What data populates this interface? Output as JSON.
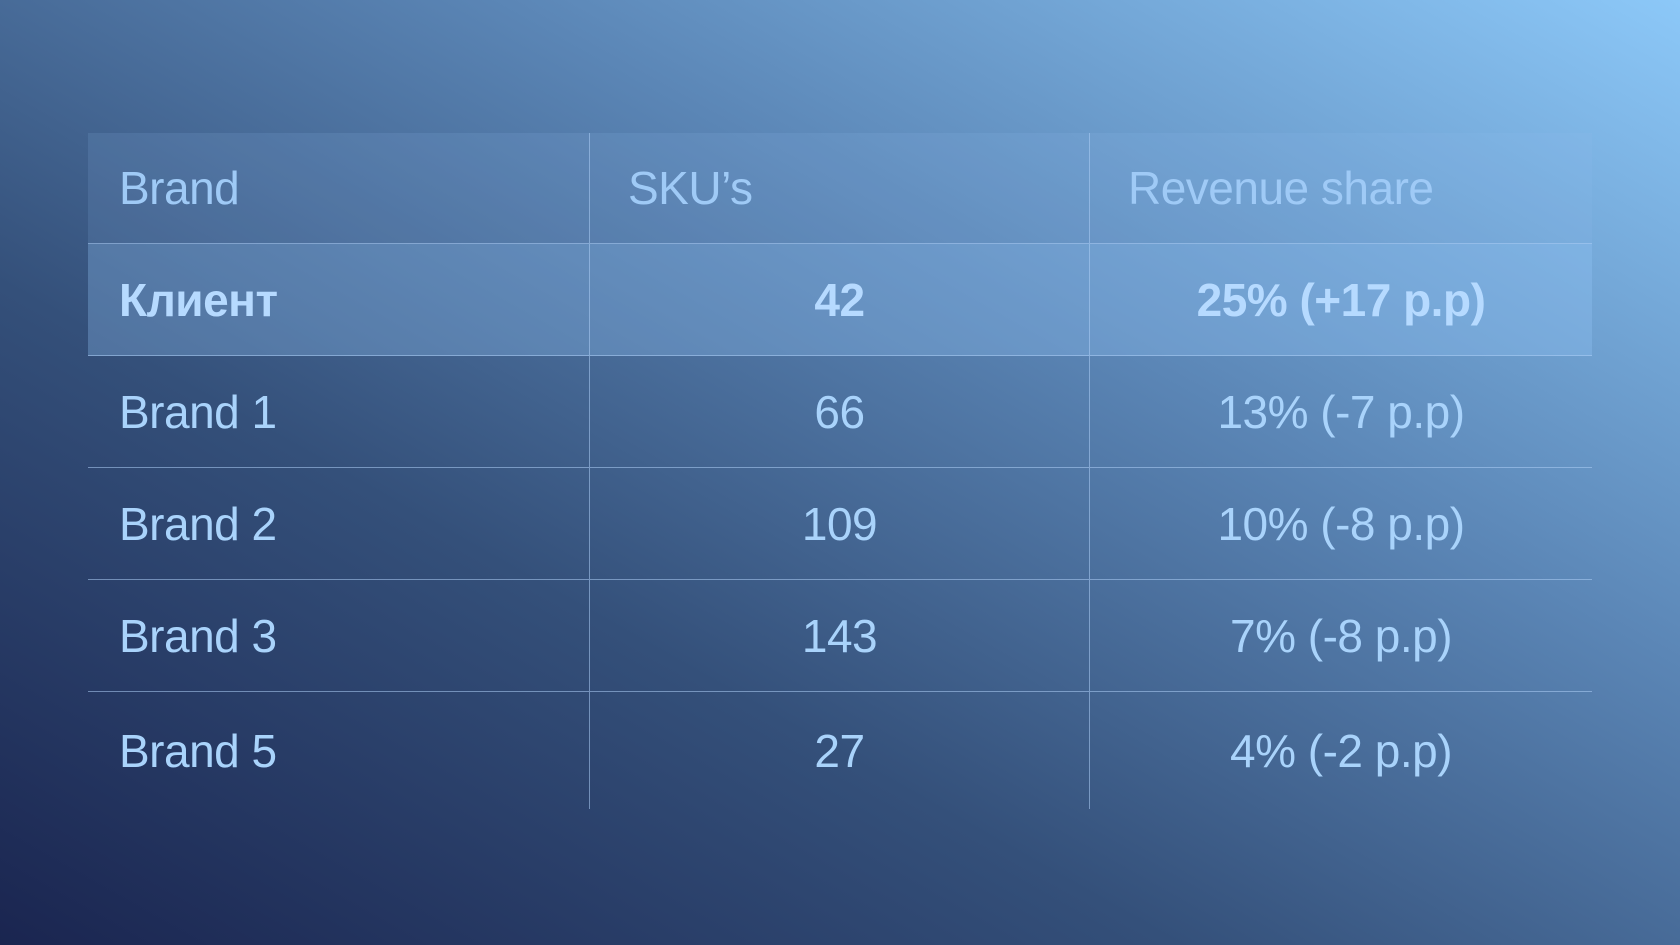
{
  "table": {
    "headers": [
      "Brand",
      "SKU’s",
      "Revenue share"
    ],
    "rows": [
      {
        "brand": "Клиент",
        "skus": "42",
        "share": "25% (+17 p.p)"
      },
      {
        "brand": "Brand 1",
        "skus": "66",
        "share": "13% (-7 p.p)"
      },
      {
        "brand": "Brand 2",
        "skus": "109",
        "share": "10% (-8 p.p)"
      },
      {
        "brand": "Brand 3",
        "skus": "143",
        "share": "7% (-8 p.p)"
      },
      {
        "brand": "Brand 5",
        "skus": "27",
        "share": "4% (-2 p.p)"
      }
    ]
  },
  "colors": {
    "text": "#a9d3fb",
    "highlight_row": "#7fb4e6",
    "gradient_start": "#1a2550",
    "gradient_end": "#8cc8f8"
  }
}
